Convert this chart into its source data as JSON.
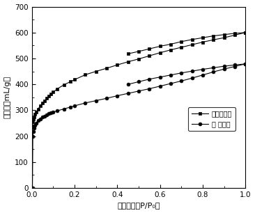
{
  "title": "",
  "xlabel": "相对压力（P/P₀）",
  "ylabel": "吸附量（mL/g）",
  "xlim": [
    0,
    1.0
  ],
  "ylim": [
    0,
    700
  ],
  "yticks": [
    0,
    100,
    200,
    300,
    400,
    500,
    600,
    700
  ],
  "xticks": [
    0.0,
    0.2,
    0.4,
    0.6,
    0.8,
    1.0
  ],
  "legend_labels": [
    "再生活性炭",
    "废 活性炭"
  ],
  "series1_x": [
    0.003,
    0.005,
    0.007,
    0.01,
    0.015,
    0.02,
    0.03,
    0.04,
    0.05,
    0.06,
    0.07,
    0.08,
    0.09,
    0.1,
    0.12,
    0.15,
    0.18,
    0.2,
    0.25,
    0.3,
    0.35,
    0.4,
    0.45,
    0.5,
    0.55,
    0.6,
    0.65,
    0.7,
    0.75,
    0.8,
    0.85,
    0.9,
    0.95,
    1.0
  ],
  "series1_y": [
    240,
    255,
    265,
    275,
    285,
    293,
    305,
    318,
    328,
    337,
    346,
    354,
    362,
    370,
    383,
    398,
    410,
    418,
    437,
    450,
    462,
    475,
    487,
    498,
    510,
    522,
    533,
    543,
    553,
    563,
    572,
    580,
    590,
    600
  ],
  "series1_desorption_x": [
    1.0,
    0.95,
    0.9,
    0.85,
    0.8,
    0.75,
    0.7,
    0.65,
    0.6,
    0.55,
    0.5,
    0.45
  ],
  "series1_desorption_y": [
    600,
    597,
    592,
    587,
    580,
    573,
    565,
    555,
    547,
    537,
    527,
    518
  ],
  "series2_x": [
    0.003,
    0.005,
    0.007,
    0.01,
    0.015,
    0.02,
    0.03,
    0.04,
    0.05,
    0.06,
    0.07,
    0.08,
    0.09,
    0.1,
    0.12,
    0.15,
    0.18,
    0.2,
    0.25,
    0.3,
    0.35,
    0.4,
    0.45,
    0.5,
    0.55,
    0.6,
    0.65,
    0.7,
    0.75,
    0.8,
    0.85,
    0.9,
    0.95,
    1.0
  ],
  "series2_y": [
    0,
    200,
    218,
    230,
    242,
    250,
    260,
    267,
    273,
    278,
    283,
    287,
    290,
    293,
    298,
    305,
    312,
    317,
    328,
    337,
    346,
    356,
    365,
    374,
    383,
    393,
    403,
    413,
    424,
    436,
    448,
    459,
    469,
    479
  ],
  "series2_desorption_x": [
    1.0,
    0.95,
    0.9,
    0.85,
    0.8,
    0.75,
    0.7,
    0.65,
    0.6,
    0.55,
    0.5,
    0.45
  ],
  "series2_desorption_y": [
    479,
    475,
    470,
    464,
    458,
    451,
    444,
    436,
    428,
    420,
    410,
    400
  ],
  "line_color": "#000000",
  "marker1": "s",
  "marker2": "o",
  "markersize": 3.5,
  "background_color": "#ffffff"
}
